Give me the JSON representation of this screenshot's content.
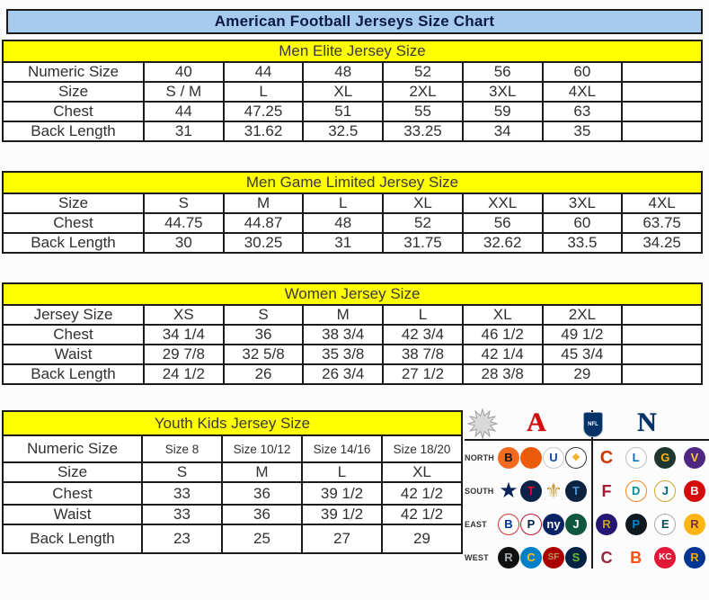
{
  "title": "American Football Jerseys Size Chart",
  "colors": {
    "title_bg": "#a7cbee",
    "section_header_bg": "#ffff00",
    "border": "#1b1b1b"
  },
  "tables": [
    {
      "header": "Men Elite Jersey Size",
      "rows": [
        {
          "label": "Numeric Size",
          "values": [
            "40",
            "44",
            "48",
            "52",
            "56",
            "60",
            ""
          ]
        },
        {
          "label": "Size",
          "values": [
            "S / M",
            "L",
            "XL",
            "2XL",
            "3XL",
            "4XL",
            ""
          ]
        },
        {
          "label": "Chest",
          "values": [
            "44",
            "47.25",
            "51",
            "55",
            "59",
            "63",
            ""
          ]
        },
        {
          "label": "Back Length",
          "values": [
            "31",
            "31.62",
            "32.5",
            "33.25",
            "34",
            "35",
            ""
          ]
        }
      ]
    },
    {
      "header": "Men Game Limited Jersey Size",
      "rows": [
        {
          "label": "Size",
          "values": [
            "S",
            "M",
            "L",
            "XL",
            "XXL",
            "3XL",
            "4XL"
          ]
        },
        {
          "label": "Chest",
          "values": [
            "44.75",
            "44.87",
            "48",
            "52",
            "56",
            "60",
            "63.75"
          ]
        },
        {
          "label": "Back Length",
          "values": [
            "30",
            "30.25",
            "31",
            "31.75",
            "32.62",
            "33.5",
            "34.25"
          ]
        }
      ]
    },
    {
      "header": "Women Jersey Size",
      "rows": [
        {
          "label": "Jersey Size",
          "values": [
            "XS",
            "S",
            "M",
            "L",
            "XL",
            "2XL",
            ""
          ]
        },
        {
          "label": "Chest",
          "values": [
            "34 1/4",
            "36",
            "38 3/4",
            "42 3/4",
            "46 1/2",
            "49 1/2",
            ""
          ]
        },
        {
          "label": "Waist",
          "values": [
            "29 7/8",
            "32 5/8",
            "35 3/8",
            "38 7/8",
            "42 1/4",
            "45 3/4",
            ""
          ]
        },
        {
          "label": "Back Length",
          "values": [
            "24 1/2",
            "26",
            "26 3/4",
            "27 1/2",
            "28 3/8",
            "29",
            ""
          ]
        }
      ]
    },
    {
      "header": "Youth Kids Jersey Size",
      "rows": [
        {
          "label": "Numeric Size",
          "values": [
            "Size 8",
            "Size 10/12",
            "Size 14/16",
            "Size 18/20"
          ]
        },
        {
          "label": "Size",
          "values": [
            "S",
            "M",
            "L",
            "XL"
          ]
        },
        {
          "label": "Chest",
          "values": [
            "33",
            "36",
            "39 1/2",
            "42 1/2"
          ]
        },
        {
          "label": "Waist",
          "values": [
            "33",
            "36",
            "39 1/2",
            "42 1/2"
          ]
        },
        {
          "label": "Back Length",
          "values": [
            "23",
            "25",
            "27",
            "29"
          ]
        }
      ]
    }
  ],
  "divisions": {
    "conference_icons": {
      "starburst": "starburst",
      "afc_label": "A",
      "nfl_label": "NFL",
      "nfc_label": "N",
      "afc_color": "#d50a0a",
      "nfc_color": "#013369"
    },
    "row_labels": [
      "NORTH",
      "SOUTH",
      "EAST",
      "WEST"
    ],
    "afc": [
      [
        {
          "name": "bengals",
          "text": "B",
          "bg": "#f46a1f",
          "fg": "#141414"
        },
        {
          "name": "browns",
          "text": "",
          "bg": "#eb5b0c",
          "fg": "#ffffff"
        },
        {
          "name": "colts",
          "text": "U",
          "bg": "#ffffff",
          "fg": "#1446a0",
          "border": "#c9c9c9"
        },
        {
          "name": "steelers",
          "text": "◆",
          "bg": "#ffffff",
          "fg": "#f0b323",
          "border": "#3a3a3a",
          "fs": 11
        }
      ],
      [
        {
          "name": "cowboys",
          "text": "★",
          "bg": "transparent",
          "fg": "#0a2458",
          "fs": 24
        },
        {
          "name": "texans",
          "text": "T",
          "bg": "#0b2349",
          "fg": "#e4002b"
        },
        {
          "name": "saints",
          "text": "⚜",
          "bg": "transparent",
          "fg": "#c5a144",
          "fs": 22
        },
        {
          "name": "titans",
          "text": "T",
          "bg": "#0c2340",
          "fg": "#4b92db"
        }
      ],
      [
        {
          "name": "bills",
          "text": "B",
          "bg": "#ffffff",
          "fg": "#00338d",
          "border": "#d03030"
        },
        {
          "name": "patriots",
          "text": "P",
          "bg": "#ffffff",
          "fg": "#002244",
          "border": "#c60c30"
        },
        {
          "name": "giants",
          "text": "ny",
          "bg": "#0b2265",
          "fg": "#ffffff"
        },
        {
          "name": "jets",
          "text": "J",
          "bg": "#115740",
          "fg": "#ffffff"
        }
      ],
      [
        {
          "name": "raiders",
          "text": "R",
          "bg": "#101010",
          "fg": "#a5acaf"
        },
        {
          "name": "chargers",
          "text": "C",
          "bg": "#0080c6",
          "fg": "#ffc20e"
        },
        {
          "name": "49ers",
          "text": "SF",
          "bg": "#aa0000",
          "fg": "#b3995d",
          "fs": 10
        },
        {
          "name": "seahawks",
          "text": "S",
          "bg": "#002244",
          "fg": "#69be28"
        }
      ]
    ],
    "nfc": [
      [
        {
          "name": "bears",
          "text": "C",
          "bg": "transparent",
          "fg": "#c83803",
          "fs": 20
        },
        {
          "name": "lions",
          "text": "L",
          "bg": "#ffffff",
          "fg": "#0076b6",
          "border": "#b9c2c8"
        },
        {
          "name": "packers",
          "text": "G",
          "bg": "#203731",
          "fg": "#ffb612"
        },
        {
          "name": "vikings",
          "text": "V",
          "bg": "#4f2683",
          "fg": "#ffc62f"
        }
      ],
      [
        {
          "name": "falcons",
          "text": "F",
          "bg": "transparent",
          "fg": "#a71930",
          "fs": 18
        },
        {
          "name": "dolphins",
          "text": "D",
          "bg": "#ffffff",
          "fg": "#008e97",
          "border": "#f58220"
        },
        {
          "name": "jaguars",
          "text": "J",
          "bg": "#ffffff",
          "fg": "#006778",
          "border": "#d7a22a"
        },
        {
          "name": "buccaneers",
          "text": "B",
          "bg": "#d50a0a",
          "fg": "#ffffff"
        }
      ],
      [
        {
          "name": "ravens",
          "text": "R",
          "bg": "#241773",
          "fg": "#c5a40a"
        },
        {
          "name": "panthers",
          "text": "P",
          "bg": "#101820",
          "fg": "#0085ca"
        },
        {
          "name": "eagles",
          "text": "E",
          "bg": "#ffffff",
          "fg": "#004c54",
          "border": "#a5acaf"
        },
        {
          "name": "redskins",
          "text": "R",
          "bg": "#ffb612",
          "fg": "#773141"
        }
      ],
      [
        {
          "name": "cardinals",
          "text": "C",
          "bg": "transparent",
          "fg": "#97233f",
          "fs": 18
        },
        {
          "name": "broncos",
          "text": "B",
          "bg": "transparent",
          "fg": "#fb4f14",
          "fs": 18
        },
        {
          "name": "chiefs",
          "text": "KC",
          "bg": "#e31837",
          "fg": "#ffffff",
          "fs": 10
        },
        {
          "name": "rams",
          "text": "R",
          "bg": "#003594",
          "fg": "#ffa300"
        }
      ]
    ]
  }
}
